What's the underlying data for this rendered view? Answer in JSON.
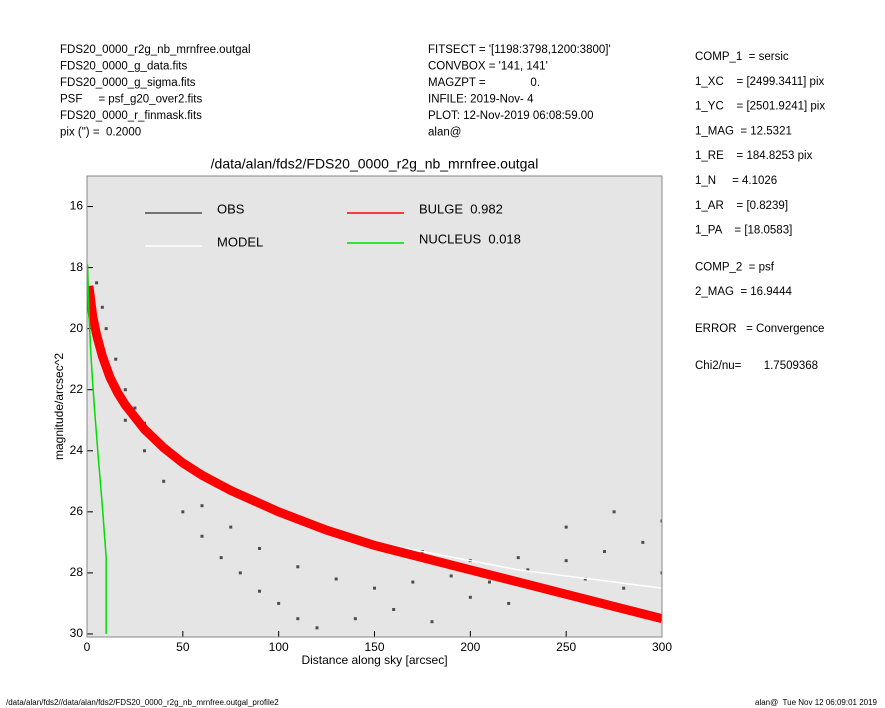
{
  "header": {
    "left": [
      "FDS20_0000_r2g_nb_mrnfree.outgal",
      "FDS20_0000_g_data.fits",
      "FDS20_0000_g_sigma.fits",
      "PSF     = psf_g20_over2.fits",
      "FDS20_0000_r_finmask.fits",
      "pix (\") =  0.2000"
    ],
    "middle": [
      "FITSECT = '[1198:3798,1200:3800]'",
      "CONVBOX = '141, 141'",
      "MAGZPT =              0.",
      "INFILE: 2019-Nov- 4",
      "PLOT: 12-Nov-2019 06:08:59.00",
      "alan@"
    ],
    "right": [
      [
        "COMP_1  = sersic",
        "1_XC    = [2499.3411] pix",
        "1_YC    = [2501.9241] pix",
        "1_MAG  = 12.5321",
        "1_RE    = 184.8253 pix",
        "1_N     = 4.1026",
        "1_AR    = [0.8239]",
        "1_PA    = [18.0583]"
      ],
      [
        "COMP_2  = psf",
        "2_MAG  = 16.9444"
      ],
      [
        "ERROR   = Convergence"
      ],
      [
        "Chi2/nu=       1.7509368"
      ]
    ]
  },
  "footer": {
    "left": "/data/alan/fds2//data/alan/fds2/FDS20_0000_r2g_nb_mrnfree.outgal_profile2",
    "right": "alan@  Tue Nov 12 06:09:01 2019"
  },
  "chart_data": {
    "type": "scatter",
    "title": "/data/alan/fds2/FDS20_0000_r2g_nb_mrnfree.outgal",
    "x_label": "Distance along sky [arcsec]",
    "y_label": "magnitude/arcsec^2",
    "xlim": [
      0,
      300
    ],
    "ylim": [
      15,
      30.1
    ],
    "y_inverted": true,
    "xticks": [
      0,
      50,
      100,
      150,
      200,
      250,
      300
    ],
    "yticks": [
      16,
      18,
      20,
      22,
      24,
      26,
      28,
      30
    ],
    "background": "#e5e5e5",
    "series": [
      {
        "name": "OBS",
        "color": "#4d4d4d",
        "type": "scatter",
        "x": [
          5,
          8,
          10,
          15,
          20,
          25,
          30,
          40,
          50,
          60,
          80,
          100,
          125,
          150,
          175,
          200,
          225,
          250,
          275,
          300,
          20,
          30,
          40,
          50,
          60,
          70,
          80,
          90,
          100,
          110,
          120,
          140,
          160,
          180,
          200,
          220,
          240,
          260,
          280,
          300,
          60,
          75,
          90,
          110,
          130,
          150,
          170,
          190,
          210,
          230,
          250,
          270,
          290
        ],
        "values": [
          18.5,
          19.3,
          20,
          21,
          22,
          22.6,
          23.1,
          23.8,
          24.4,
          24.9,
          25.5,
          26,
          26.6,
          27.1,
          27.3,
          27.6,
          27.5,
          26.5,
          26,
          26.3,
          23,
          24,
          25,
          26,
          26.8,
          27.5,
          28,
          28.6,
          29,
          29.5,
          29.8,
          29.5,
          29.2,
          29.6,
          28.8,
          29,
          28.6,
          28.2,
          28.5,
          28,
          25.8,
          26.5,
          27.2,
          27.8,
          28.2,
          28.5,
          28.3,
          28.1,
          28.3,
          27.9,
          27.6,
          27.3,
          27
        ]
      },
      {
        "name": "MODEL",
        "color": "#ffffff",
        "type": "line",
        "x": [
          100,
          125,
          150,
          175,
          200,
          225,
          250,
          275,
          300
        ],
        "values": [
          26.1,
          26.6,
          27,
          27.3,
          27.6,
          27.9,
          28.1,
          28.3,
          28.5
        ]
      },
      {
        "name": "BULGE  0.982",
        "color": "#ff0000",
        "type": "band",
        "x": [
          1,
          3,
          5,
          8,
          12,
          16,
          20,
          25,
          30,
          40,
          50,
          60,
          75,
          100,
          125,
          150,
          175,
          200,
          225,
          250,
          275,
          300
        ],
        "values": [
          18.6,
          19.6,
          20.2,
          20.9,
          21.6,
          22.1,
          22.5,
          22.9,
          23.3,
          23.9,
          24.4,
          24.8,
          25.3,
          26,
          26.6,
          27.1,
          27.5,
          27.9,
          28.3,
          28.7,
          29.1,
          29.5
        ]
      },
      {
        "name": "NUCLEUS  0.018",
        "color": "#00dd00",
        "type": "line",
        "x": [
          0.3,
          1,
          2,
          3,
          4,
          6,
          8,
          10,
          10
        ],
        "values": [
          17.9,
          19.5,
          20.8,
          21.8,
          22.7,
          24.3,
          25.8,
          27.5,
          30
        ]
      }
    ]
  }
}
